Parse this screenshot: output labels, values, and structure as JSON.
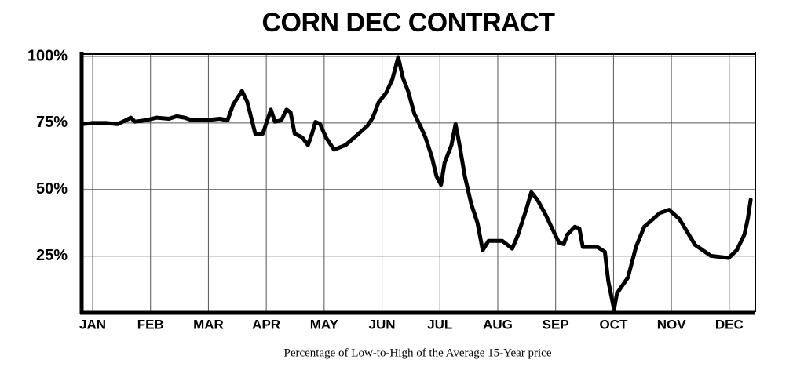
{
  "chart_data": {
    "type": "line",
    "title": "CORN DEC CONTRACT",
    "caption": "Percentage of Low-to-High of the Average 15-Year price",
    "color": "#000000",
    "grid": true,
    "xlim": [
      -0.19,
      11.45
    ],
    "ylim": [
      4,
      100
    ],
    "xticks": [
      {
        "value": 0,
        "label": "JAN"
      },
      {
        "value": 1,
        "label": "FEB"
      },
      {
        "value": 2,
        "label": "MAR"
      },
      {
        "value": 3,
        "label": "APR"
      },
      {
        "value": 4,
        "label": "MAY"
      },
      {
        "value": 5,
        "label": "JUN"
      },
      {
        "value": 6,
        "label": "JUL"
      },
      {
        "value": 7,
        "label": "AUG"
      },
      {
        "value": 8,
        "label": "SEP"
      },
      {
        "value": 9,
        "label": "OCT"
      },
      {
        "value": 10,
        "label": "NOV"
      },
      {
        "value": 11,
        "label": "DEC"
      }
    ],
    "yticks": [
      {
        "value": 25,
        "label": "25%"
      },
      {
        "value": 50,
        "label": "50%"
      },
      {
        "value": 75,
        "label": "75%"
      },
      {
        "value": 100,
        "label": "100%"
      }
    ],
    "x": [
      -0.18,
      0,
      0.23,
      0.43,
      0.57,
      0.66,
      0.73,
      0.91,
      1.11,
      1.32,
      1.45,
      1.59,
      1.72,
      1.93,
      2.2,
      2.33,
      2.43,
      2.58,
      2.67,
      2.81,
      2.94,
      3.08,
      3.15,
      3.26,
      3.35,
      3.42,
      3.49,
      3.62,
      3.72,
      3.79,
      3.85,
      3.93,
      4.03,
      4.17,
      4.37,
      4.57,
      4.75,
      4.84,
      4.94,
      5.07,
      5.18,
      5.28,
      5.36,
      5.45,
      5.56,
      5.66,
      5.75,
      5.86,
      5.94,
      6.02,
      6.08,
      6.2,
      6.27,
      6.34,
      6.43,
      6.54,
      6.65,
      6.74,
      6.84,
      7.08,
      7.25,
      7.35,
      7.49,
      7.58,
      7.69,
      7.83,
      7.96,
      8.06,
      8.14,
      8.2,
      8.33,
      8.41,
      8.47,
      8.72,
      8.85,
      8.91,
      9.01,
      9.06,
      9.25,
      9.39,
      9.53,
      9.8,
      9.96,
      10.14,
      10.41,
      10.68,
      10.99,
      11.13,
      11.26,
      11.32,
      11.37
    ],
    "values": [
      74.6,
      75,
      75,
      74.6,
      76,
      77,
      75.5,
      76,
      77,
      76.6,
      77.5,
      77,
      76,
      76,
      76.6,
      76,
      82,
      87,
      83,
      71,
      71,
      80,
      75.5,
      76,
      80,
      79,
      71,
      69.6,
      66.7,
      71,
      75.4,
      74.6,
      69.6,
      65,
      66.7,
      70.5,
      74,
      77,
      82.7,
      86.3,
      91.5,
      99.7,
      92,
      87,
      78.4,
      74,
      69.6,
      62.3,
      55,
      51.8,
      60,
      66.7,
      74.6,
      66.7,
      55,
      44.7,
      37.4,
      27.2,
      30.7,
      30.7,
      27.8,
      33,
      42.4,
      49,
      46,
      40.4,
      34.5,
      30,
      29.5,
      33,
      36,
      35.4,
      28.4,
      28.4,
      26.6,
      15.5,
      5,
      11,
      17,
      28.6,
      36,
      41.2,
      42.4,
      38.9,
      29.2,
      25.1,
      24.3,
      27.2,
      33,
      38.9,
      46.2
    ]
  }
}
